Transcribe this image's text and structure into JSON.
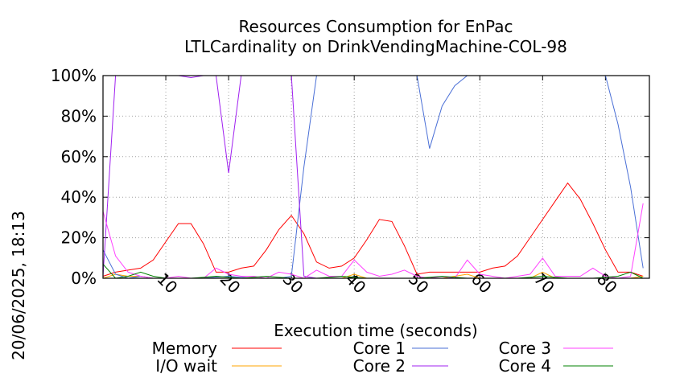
{
  "chart_data": {
    "type": "line",
    "title": "Resources Consumption for EnPac",
    "subtitle": "LTLCardinality on DrinkVendingMachine-COL-98",
    "xlabel": "Execution time (seconds)",
    "ylabel": "",
    "side_label": "20/06/2025, 18:13",
    "xlim": [
      0,
      87
    ],
    "ylim": [
      0,
      100
    ],
    "x_ticks": [
      10,
      20,
      30,
      40,
      50,
      60,
      70,
      80
    ],
    "y_ticks": [
      0,
      20,
      40,
      60,
      80,
      100
    ],
    "y_tick_labels": [
      "0%",
      "20%",
      "40%",
      "60%",
      "80%",
      "100%"
    ],
    "grid": true,
    "legend_position": "bottom",
    "series": [
      {
        "name": "Memory",
        "color": "#ff0000",
        "points": [
          [
            0,
            1
          ],
          [
            2,
            3
          ],
          [
            4,
            4
          ],
          [
            6,
            5
          ],
          [
            8,
            9
          ],
          [
            10,
            18
          ],
          [
            12,
            27
          ],
          [
            14,
            27
          ],
          [
            16,
            17
          ],
          [
            18,
            3
          ],
          [
            20,
            3
          ],
          [
            22,
            5
          ],
          [
            24,
            6
          ],
          [
            26,
            14
          ],
          [
            28,
            24
          ],
          [
            30,
            31
          ],
          [
            32,
            22
          ],
          [
            34,
            8
          ],
          [
            36,
            5
          ],
          [
            38,
            6
          ],
          [
            40,
            10
          ],
          [
            42,
            19
          ],
          [
            44,
            29
          ],
          [
            46,
            28
          ],
          [
            48,
            16
          ],
          [
            50,
            2
          ],
          [
            52,
            3
          ],
          [
            54,
            3
          ],
          [
            56,
            3
          ],
          [
            58,
            3
          ],
          [
            60,
            3
          ],
          [
            62,
            5
          ],
          [
            64,
            6
          ],
          [
            66,
            11
          ],
          [
            68,
            20
          ],
          [
            70,
            29
          ],
          [
            72,
            38
          ],
          [
            74,
            47
          ],
          [
            76,
            39
          ],
          [
            78,
            27
          ],
          [
            80,
            14
          ],
          [
            82,
            3
          ],
          [
            84,
            3
          ],
          [
            86,
            1
          ]
        ]
      },
      {
        "name": "I/O wait",
        "color": "#ffa500",
        "points": [
          [
            0,
            0
          ],
          [
            2,
            2
          ],
          [
            4,
            1
          ],
          [
            6,
            1
          ],
          [
            8,
            0
          ],
          [
            10,
            0
          ],
          [
            14,
            0
          ],
          [
            18,
            0
          ],
          [
            22,
            0
          ],
          [
            26,
            0
          ],
          [
            30,
            0
          ],
          [
            34,
            0
          ],
          [
            38,
            0
          ],
          [
            40,
            2
          ],
          [
            42,
            0
          ],
          [
            46,
            0
          ],
          [
            50,
            0
          ],
          [
            54,
            0
          ],
          [
            56,
            1
          ],
          [
            58,
            2
          ],
          [
            60,
            0
          ],
          [
            64,
            0
          ],
          [
            68,
            0
          ],
          [
            70,
            3
          ],
          [
            72,
            0
          ],
          [
            76,
            0
          ],
          [
            80,
            0
          ],
          [
            84,
            0
          ],
          [
            86,
            1
          ]
        ]
      },
      {
        "name": "Core 1",
        "color": "#4a6fd6",
        "points": [
          [
            0,
            14
          ],
          [
            2,
            2
          ],
          [
            4,
            0
          ],
          [
            6,
            1
          ],
          [
            8,
            0
          ],
          [
            12,
            0
          ],
          [
            16,
            0
          ],
          [
            20,
            1
          ],
          [
            24,
            0
          ],
          [
            28,
            0
          ],
          [
            30,
            1
          ],
          [
            32,
            55
          ],
          [
            34,
            100
          ],
          [
            36,
            100
          ],
          [
            40,
            100
          ],
          [
            44,
            100
          ],
          [
            48,
            100
          ],
          [
            50,
            100
          ],
          [
            52,
            64
          ],
          [
            54,
            85
          ],
          [
            56,
            95
          ],
          [
            58,
            100
          ],
          [
            62,
            100
          ],
          [
            66,
            100
          ],
          [
            70,
            100
          ],
          [
            74,
            100
          ],
          [
            78,
            100
          ],
          [
            80,
            100
          ],
          [
            82,
            76
          ],
          [
            84,
            45
          ],
          [
            86,
            5
          ]
        ]
      },
      {
        "name": "Core 2",
        "color": "#a020f0",
        "points": [
          [
            0,
            1
          ],
          [
            2,
            100
          ],
          [
            4,
            100
          ],
          [
            6,
            100
          ],
          [
            8,
            100
          ],
          [
            10,
            100
          ],
          [
            12,
            100
          ],
          [
            14,
            99
          ],
          [
            16,
            100
          ],
          [
            18,
            100
          ],
          [
            20,
            52
          ],
          [
            22,
            100
          ],
          [
            24,
            100
          ],
          [
            26,
            100
          ],
          [
            28,
            100
          ],
          [
            30,
            100
          ],
          [
            32,
            1
          ],
          [
            34,
            0
          ],
          [
            38,
            0
          ],
          [
            42,
            0
          ],
          [
            46,
            0
          ],
          [
            50,
            0
          ],
          [
            54,
            0
          ],
          [
            58,
            0
          ],
          [
            62,
            0
          ],
          [
            66,
            0
          ],
          [
            70,
            0
          ],
          [
            74,
            0
          ],
          [
            78,
            0
          ],
          [
            82,
            0
          ],
          [
            86,
            0
          ]
        ]
      },
      {
        "name": "Core 3",
        "color": "#ff40ff",
        "points": [
          [
            0,
            33
          ],
          [
            2,
            11
          ],
          [
            4,
            3
          ],
          [
            6,
            1
          ],
          [
            8,
            0
          ],
          [
            10,
            0
          ],
          [
            12,
            1
          ],
          [
            14,
            0
          ],
          [
            16,
            0
          ],
          [
            18,
            5
          ],
          [
            20,
            2
          ],
          [
            22,
            1
          ],
          [
            24,
            1
          ],
          [
            26,
            0
          ],
          [
            28,
            3
          ],
          [
            30,
            2
          ],
          [
            32,
            0
          ],
          [
            34,
            4
          ],
          [
            36,
            1
          ],
          [
            38,
            1
          ],
          [
            40,
            9
          ],
          [
            42,
            3
          ],
          [
            44,
            1
          ],
          [
            46,
            2
          ],
          [
            48,
            4
          ],
          [
            50,
            1
          ],
          [
            52,
            0
          ],
          [
            54,
            1
          ],
          [
            56,
            0
          ],
          [
            58,
            9
          ],
          [
            60,
            2
          ],
          [
            62,
            1
          ],
          [
            64,
            0
          ],
          [
            66,
            1
          ],
          [
            68,
            2
          ],
          [
            70,
            10
          ],
          [
            72,
            1
          ],
          [
            74,
            1
          ],
          [
            76,
            1
          ],
          [
            78,
            5
          ],
          [
            80,
            1
          ],
          [
            82,
            0
          ],
          [
            84,
            1
          ],
          [
            86,
            37
          ]
        ]
      },
      {
        "name": "Core 4",
        "color": "#008000",
        "points": [
          [
            0,
            7
          ],
          [
            2,
            0
          ],
          [
            4,
            1
          ],
          [
            6,
            3
          ],
          [
            8,
            1
          ],
          [
            10,
            0
          ],
          [
            14,
            0
          ],
          [
            18,
            1
          ],
          [
            22,
            0
          ],
          [
            26,
            1
          ],
          [
            30,
            0
          ],
          [
            34,
            0
          ],
          [
            38,
            1
          ],
          [
            42,
            0
          ],
          [
            46,
            0
          ],
          [
            50,
            0
          ],
          [
            54,
            1
          ],
          [
            58,
            0
          ],
          [
            62,
            0
          ],
          [
            66,
            0
          ],
          [
            70,
            1
          ],
          [
            74,
            0
          ],
          [
            78,
            0
          ],
          [
            82,
            1
          ],
          [
            84,
            3
          ],
          [
            86,
            0
          ]
        ]
      }
    ]
  }
}
